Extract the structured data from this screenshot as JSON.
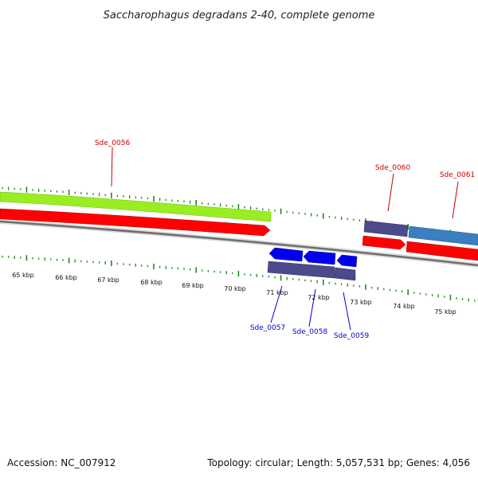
{
  "title": "Saccharophagus degradans 2-40, complete genome",
  "footer": {
    "accession": "Accession: NC_007912",
    "summary": "Topology: circular; Length: 5,057,531 bp; Genes: 4,056"
  },
  "colors": {
    "forward_label": "#cc0000",
    "reverse_label": "#0000cc",
    "tick_green": "#1a8c1a",
    "backbone": "#777777",
    "cds_forward": "#ff0000",
    "cds_reverse": "#0000ee",
    "feature_green": "#99ee22",
    "feature_purple": "#4b4a8c",
    "feature_steel": "#3a7fbf"
  },
  "scale_labels": [
    "65 kbp",
    "66 kbp",
    "67 kbp",
    "68 kbp",
    "69 kbp",
    "70 kbp",
    "71 kbp",
    "72 kbp",
    "73 kbp",
    "74 kbp",
    "75 kbp"
  ],
  "gene_labels": {
    "forward": [
      "Sde_0056",
      "Sde_0060",
      "Sde_0061"
    ],
    "reverse": [
      "Sde_0057",
      "Sde_0058",
      "Sde_0059"
    ]
  }
}
